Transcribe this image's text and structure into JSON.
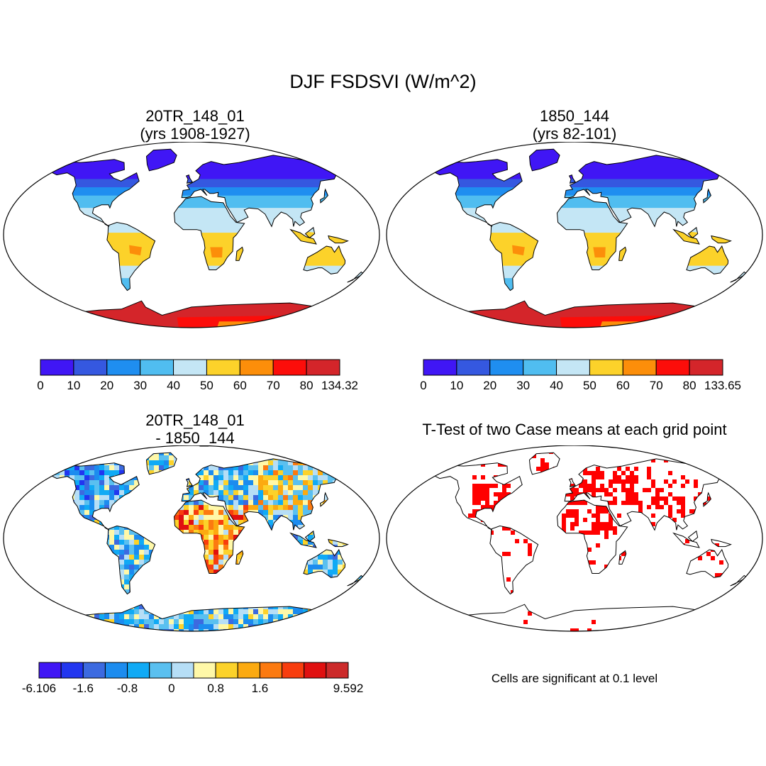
{
  "title": "DJF FSDSVI (W/m^2)",
  "panels": {
    "top_left": {
      "title_line1": "20TR_148_01",
      "title_line2": "(yrs 1908-1927)"
    },
    "top_right": {
      "title_line1": "1850_144",
      "title_line2": "(yrs 82-101)"
    },
    "bottom_left": {
      "title_line1": "20TR_148_01",
      "title_line2": "- 1850_144"
    },
    "bottom_right": {
      "title_line1": "T-Test of two Case means at each grid point"
    }
  },
  "colorbars": {
    "top_left": {
      "colors": [
        "#4016f5",
        "#3558e0",
        "#1f8ef0",
        "#50bdf0",
        "#c4e6f5",
        "#fcd22a",
        "#fc8e0a",
        "#fc0d0a",
        "#d4252a"
      ],
      "labels": [
        "0",
        "10",
        "20",
        "30",
        "40",
        "50",
        "60",
        "70",
        "80",
        "134.32"
      ]
    },
    "top_right": {
      "colors": [
        "#4016f5",
        "#3558e0",
        "#1f8ef0",
        "#50bdf0",
        "#c4e6f5",
        "#fcd22a",
        "#fc8e0a",
        "#fc0d0a",
        "#d4252a"
      ],
      "labels": [
        "0",
        "10",
        "20",
        "30",
        "40",
        "50",
        "60",
        "70",
        "80",
        "133.65"
      ]
    },
    "bottom_left": {
      "colors": [
        "#4016f5",
        "#2236f0",
        "#3c6ae0",
        "#1c8cef",
        "#10aaf5",
        "#5ac0f0",
        "#b6def6",
        "#fff8a8",
        "#fcd22a",
        "#fcaa10",
        "#fc7a10",
        "#f83d0e",
        "#e01010",
        "#cc2a2a"
      ],
      "labels": [
        "-6.106",
        "",
        "-1.6",
        "",
        "-0.8",
        "",
        "0",
        "",
        "0.8",
        "",
        "1.6",
        "",
        "",
        "",
        "9.592"
      ]
    }
  },
  "significance_note": "Cells are significant at 0.1 level",
  "colors": {
    "land_mask": "#ffffff",
    "significant_cell": "#ff0000",
    "coast": "#000000"
  }
}
